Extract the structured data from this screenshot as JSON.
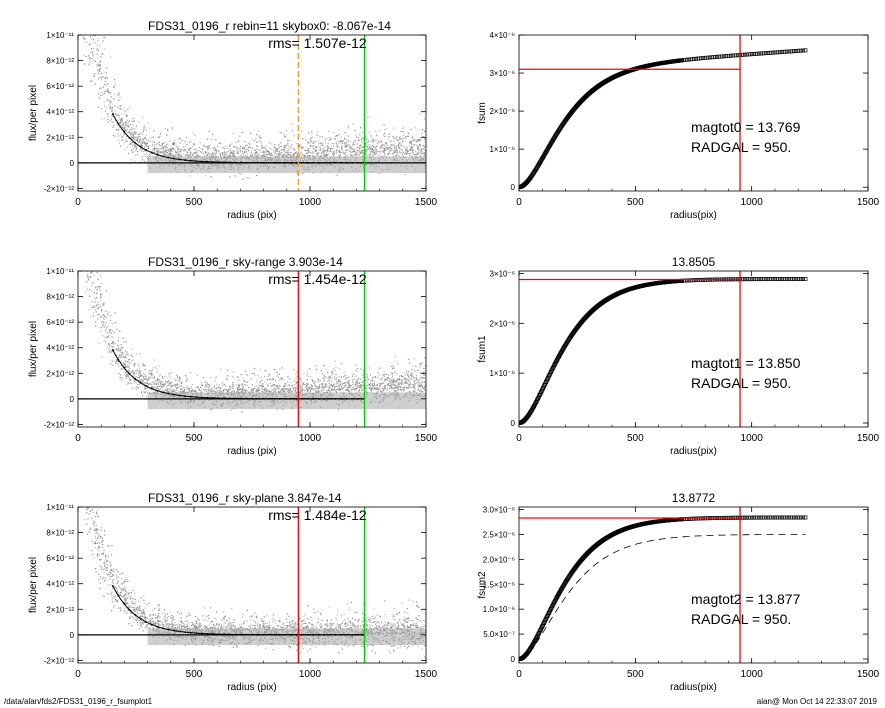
{
  "footer": {
    "path": "/data/alan/fds2/FDS31_0196_r_fsumplot1",
    "user_time": "alan@  Mon Oct 14 22:33:07 2019"
  },
  "colors": {
    "red": "#ff0000",
    "green": "#00cc00",
    "orange": "#f39a2b",
    "scatter": "#9a9a9a",
    "line": "#000000"
  },
  "chart_data": [
    {
      "id": "profile-top",
      "type": "scatter",
      "title": "FDS31_0196_r rebin=11    skybox0: -8.067e-14",
      "annotation": "rms= 1.507e-12",
      "xlabel": "radius (pix)",
      "ylabel": "flux/per pixel",
      "xlim": [
        0,
        1500
      ],
      "ylim": [
        -2.2e-12,
        1e-11
      ],
      "xticks": [
        {
          "v": 0,
          "label": "0"
        },
        {
          "v": 500,
          "label": "500"
        },
        {
          "v": 1000,
          "label": "1000"
        },
        {
          "v": 1500,
          "label": "1500"
        }
      ],
      "yticks": [
        {
          "v": 1e-11,
          "label": "1×10⁻¹¹"
        },
        {
          "v": 8e-12,
          "label": "8×10⁻¹²"
        },
        {
          "v": 6e-12,
          "label": "6×10⁻¹²"
        },
        {
          "v": 4e-12,
          "label": "4×10⁻¹²"
        },
        {
          "v": 2e-12,
          "label": "2×10⁻¹²"
        },
        {
          "v": 0,
          "label": "0"
        },
        {
          "v": -2e-12,
          "label": "-2×10⁻¹²"
        }
      ],
      "vlines": [
        {
          "x": 950,
          "color": "orange",
          "style": "dash"
        },
        {
          "x": 1235,
          "color": "green",
          "style": "solid"
        }
      ],
      "hline": {
        "y": 0,
        "xmax": 1500
      },
      "profile": {
        "amp": 1.53e-11,
        "scale": 108,
        "offset": 0,
        "xmax": 1235
      },
      "scatter_env": {
        "width": 1.6e-12,
        "tilt": 8e-13,
        "seed": 11
      }
    },
    {
      "id": "fsum-top",
      "type": "scatter",
      "title": "",
      "xlabel": "radius(pix)",
      "ylabel": "fsum",
      "xlim": [
        0,
        1500
      ],
      "ylim": [
        -1e-07,
        4e-06
      ],
      "xticks": [
        {
          "v": 0,
          "label": "0"
        },
        {
          "v": 500,
          "label": "500"
        },
        {
          "v": 1000,
          "label": "1000"
        },
        {
          "v": 1500,
          "label": "1500"
        }
      ],
      "yticks": [
        {
          "v": 4e-06,
          "label": "4×10⁻⁶"
        },
        {
          "v": 3e-06,
          "label": "3×10⁻⁶"
        },
        {
          "v": 2e-06,
          "label": "2×10⁻⁶"
        },
        {
          "v": 1e-06,
          "label": "1×10⁻⁶"
        },
        {
          "v": 0,
          "label": "0"
        }
      ],
      "vline": {
        "x": 950
      },
      "hline": {
        "y": 3.1e-06
      },
      "curve": {
        "fmax": 3.08e-06,
        "scale": 110,
        "slope": 4.2e-10,
        "xmax": 1235
      },
      "text_lines": [
        "magtot0 =  13.769",
        "RADGAL =    950."
      ]
    },
    {
      "id": "profile-mid",
      "type": "scatter",
      "title": "FDS31_0196_r sky-range  3.903e-14",
      "annotation": "rms= 1.454e-12",
      "xlabel": "radius (pix)",
      "ylabel": "flux/per pixel",
      "xlim": [
        0,
        1500
      ],
      "ylim": [
        -2.2e-12,
        1e-11
      ],
      "xticks": [
        {
          "v": 0,
          "label": "0"
        },
        {
          "v": 500,
          "label": "500"
        },
        {
          "v": 1000,
          "label": "1000"
        },
        {
          "v": 1500,
          "label": "1500"
        }
      ],
      "yticks": [
        {
          "v": 1e-11,
          "label": "1×10⁻¹¹"
        },
        {
          "v": 8e-12,
          "label": "8×10⁻¹²"
        },
        {
          "v": 6e-12,
          "label": "6×10⁻¹²"
        },
        {
          "v": 4e-12,
          "label": "4×10⁻¹²"
        },
        {
          "v": 2e-12,
          "label": "2×10⁻¹²"
        },
        {
          "v": 0,
          "label": "0"
        },
        {
          "v": -2e-12,
          "label": "-2×10⁻¹²"
        }
      ],
      "vlines": [
        {
          "x": 950,
          "color": "red",
          "style": "solid"
        },
        {
          "x": 1235,
          "color": "green",
          "style": "solid"
        }
      ],
      "hline": {
        "y": 0,
        "xmax": 1235
      },
      "profile": {
        "amp": 1.53e-11,
        "scale": 108,
        "offset": 0,
        "xmax": 1235
      },
      "scatter_env": {
        "width": 1.5e-12,
        "tilt": 9e-13,
        "seed": 23
      }
    },
    {
      "id": "fsum-mid",
      "type": "scatter",
      "title": "13.8505",
      "xlabel": "radius(pix)",
      "ylabel": "fsum1",
      "xlim": [
        0,
        1500
      ],
      "ylim": [
        -8e-08,
        3.05e-06
      ],
      "xticks": [
        {
          "v": 0,
          "label": "0"
        },
        {
          "v": 500,
          "label": "500"
        },
        {
          "v": 1000,
          "label": "1000"
        },
        {
          "v": 1500,
          "label": "1500"
        }
      ],
      "yticks": [
        {
          "v": 3e-06,
          "label": "3×10⁻⁶"
        },
        {
          "v": 2e-06,
          "label": "2×10⁻⁶"
        },
        {
          "v": 1e-06,
          "label": "1×10⁻⁶"
        },
        {
          "v": 0,
          "label": "0"
        }
      ],
      "vline": {
        "x": 950
      },
      "hline": {
        "y": 2.88e-06
      },
      "curve": {
        "fmax": 2.89e-06,
        "scale": 110,
        "slope": 0,
        "xmax": 1235
      },
      "text_lines": [
        "magtot1 =  13.850",
        "RADGAL =    950."
      ]
    },
    {
      "id": "profile-bot",
      "type": "scatter",
      "title": "FDS31_0196_r sky-plane  3.847e-14",
      "annotation": "rms= 1.484e-12",
      "xlabel": "radius (pix)",
      "ylabel": "flux/per pixel",
      "xlim": [
        0,
        1500
      ],
      "ylim": [
        -2.2e-12,
        1e-11
      ],
      "xticks": [
        {
          "v": 0,
          "label": "0"
        },
        {
          "v": 500,
          "label": "500"
        },
        {
          "v": 1000,
          "label": "1000"
        },
        {
          "v": 1500,
          "label": "1500"
        }
      ],
      "yticks": [
        {
          "v": 1e-11,
          "label": "1×10⁻¹¹"
        },
        {
          "v": 8e-12,
          "label": "8×10⁻¹²"
        },
        {
          "v": 6e-12,
          "label": "6×10⁻¹²"
        },
        {
          "v": 4e-12,
          "label": "4×10⁻¹²"
        },
        {
          "v": 2e-12,
          "label": "2×10⁻¹²"
        },
        {
          "v": 0,
          "label": "0"
        },
        {
          "v": -2e-12,
          "label": "-2×10⁻¹²"
        }
      ],
      "vlines": [
        {
          "x": 950,
          "color": "red",
          "style": "solid"
        },
        {
          "x": 1235,
          "color": "green",
          "style": "solid"
        }
      ],
      "hline": {
        "y": 0,
        "xmax": 1235
      },
      "profile": {
        "amp": 1.53e-11,
        "scale": 108,
        "offset": 0,
        "xmax": 1235
      },
      "scatter_env": {
        "width": 1.5e-12,
        "tilt": 1e-13,
        "seed": 37
      }
    },
    {
      "id": "fsum-bot",
      "type": "scatter",
      "title": "13.8772",
      "xlabel": "radius(pix)",
      "ylabel": "fsum2",
      "xlim": [
        0,
        1500
      ],
      "ylim": [
        -8e-08,
        3.05e-06
      ],
      "xticks": [
        {
          "v": 0,
          "label": "0"
        },
        {
          "v": 500,
          "label": "500"
        },
        {
          "v": 1000,
          "label": "1000"
        },
        {
          "v": 1500,
          "label": "1500"
        }
      ],
      "yticks": [
        {
          "v": 3e-06,
          "label": "3.0×10⁻⁶"
        },
        {
          "v": 2.5e-06,
          "label": "2.5×10⁻⁶"
        },
        {
          "v": 2e-06,
          "label": "2.0×10⁻⁶"
        },
        {
          "v": 1.5e-06,
          "label": "1.5×10⁻⁶"
        },
        {
          "v": 1e-06,
          "label": "1.0×10⁻⁶"
        },
        {
          "v": 5e-07,
          "label": "5.0×10⁻⁷"
        },
        {
          "v": 0,
          "label": "0"
        }
      ],
      "vline": {
        "x": 950
      },
      "hline": {
        "y": 2.83e-06
      },
      "curve": {
        "fmax": 2.84e-06,
        "scale": 110,
        "slope": 0,
        "xmax": 1235
      },
      "dashed_curve": {
        "fmax": 2.5e-06,
        "scale": 120,
        "xmax": 1235
      },
      "text_lines": [
        "magtot2 =  13.877",
        "RADGAL =    950."
      ]
    }
  ]
}
